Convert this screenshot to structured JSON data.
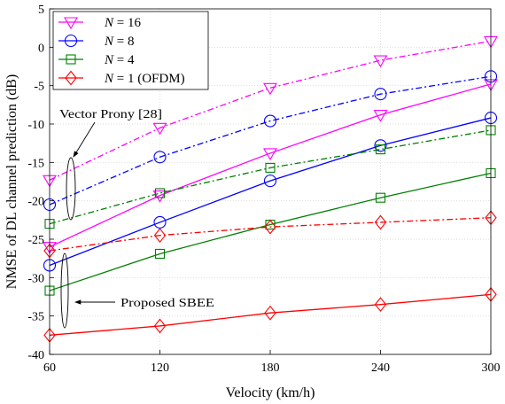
{
  "chart_data": {
    "type": "line",
    "xlabel": "Velocity (km/h)",
    "ylabel": "NMSE of DL channel prediction (dB)",
    "xlim": [
      60,
      300
    ],
    "ylim": [
      -40,
      5
    ],
    "x_ticks": [
      60,
      120,
      180,
      240,
      300
    ],
    "y_ticks": [
      5,
      0,
      -5,
      -10,
      -15,
      -20,
      -25,
      -30,
      -35,
      -40
    ],
    "grid": true,
    "legend_position": "top-left",
    "x": [
      60,
      120,
      180,
      240,
      300
    ],
    "groups": {
      "vector_prony": "Vector Prony [28]",
      "proposed": "Proposed SBEE"
    },
    "series": [
      {
        "name": "N = 16",
        "legend": {
          "symbol": "N",
          "text": " = 16"
        },
        "color": "#ff00ff",
        "marker": "triangle-down",
        "vector_prony": [
          -17.3,
          -10.5,
          -5.3,
          -1.7,
          0.8
        ],
        "proposed": [
          -26.0,
          -19.3,
          -13.8,
          -8.8,
          -4.8
        ]
      },
      {
        "name": "N = 8",
        "legend": {
          "symbol": "N",
          "text": " = 8"
        },
        "color": "#0000ff",
        "marker": "circle",
        "vector_prony": [
          -20.5,
          -14.3,
          -9.6,
          -6.1,
          -3.8
        ],
        "proposed": [
          -28.4,
          -22.8,
          -17.4,
          -12.8,
          -9.2
        ]
      },
      {
        "name": "N = 4",
        "legend": {
          "symbol": "N",
          "text": " = 4"
        },
        "color": "#008000",
        "marker": "square",
        "vector_prony": [
          -23.0,
          -19.0,
          -15.7,
          -13.3,
          -10.8
        ],
        "proposed": [
          -31.7,
          -26.9,
          -23.1,
          -19.6,
          -16.4
        ]
      },
      {
        "name": "N = 1 (OFDM)",
        "legend": {
          "symbol": "N",
          "text": " = 1 (OFDM)"
        },
        "color": "#ff0000",
        "marker": "diamond",
        "vector_prony": [
          -26.5,
          -24.5,
          -23.4,
          -22.8,
          -22.2
        ],
        "proposed": [
          -37.5,
          -36.3,
          -34.6,
          -33.5,
          -32.2
        ]
      }
    ]
  }
}
